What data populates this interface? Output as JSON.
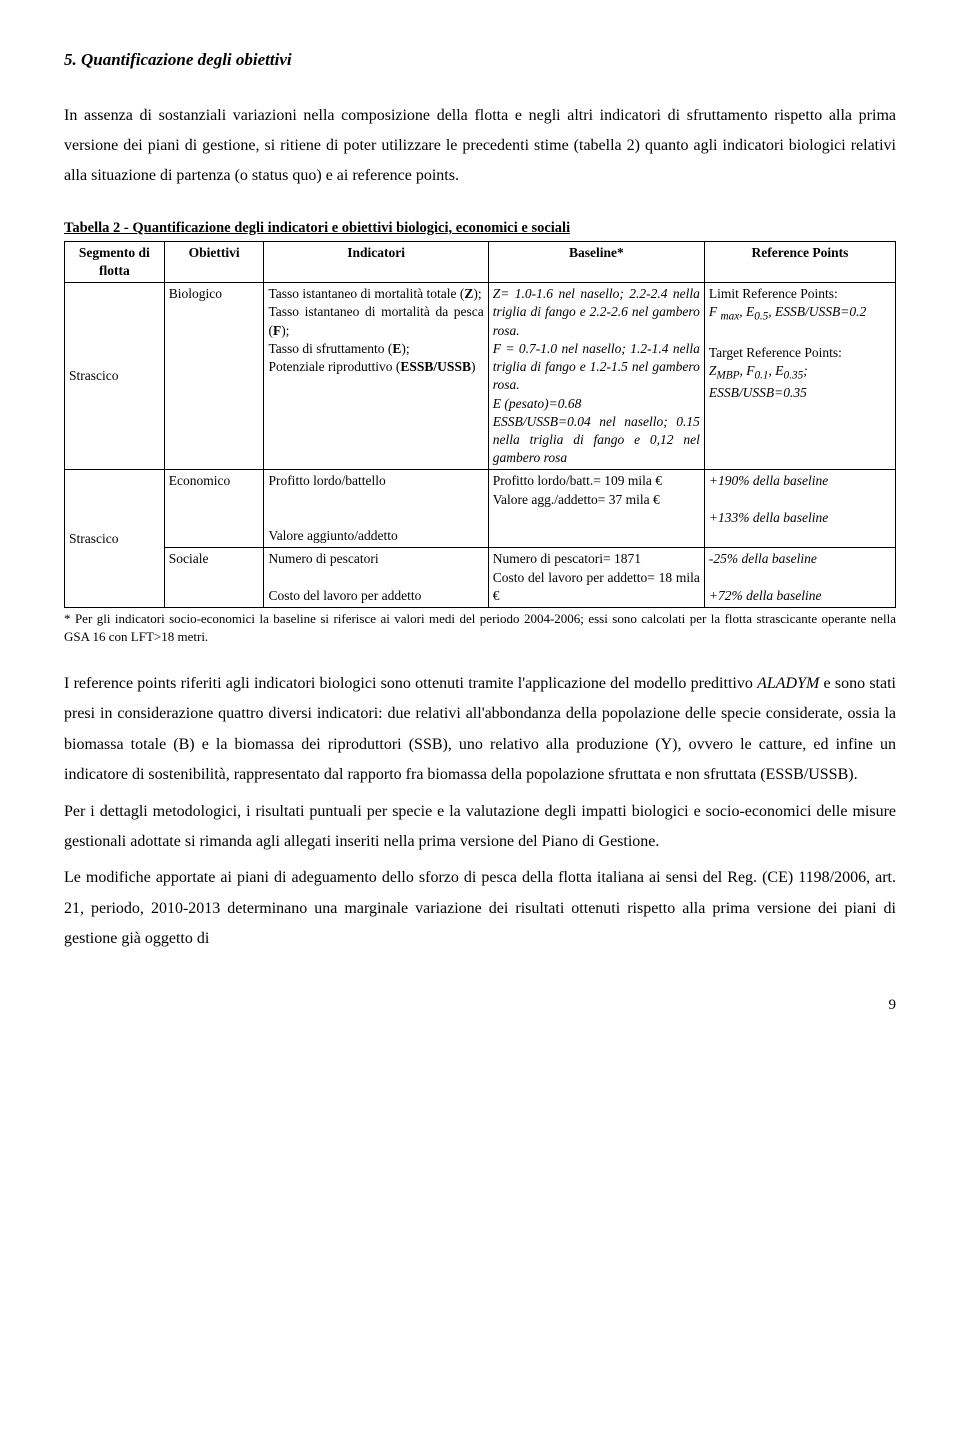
{
  "heading": "5. Quantificazione degli obiettivi",
  "intro": "In assenza di sostanziali variazioni nella composizione della flotta e negli altri indicatori di sfruttamento rispetto alla prima versione dei piani di gestione, si ritiene di poter utilizzare le precedenti stime (tabella 2) quanto agli indicatori biologici relativi alla situazione di partenza (o status quo) e ai reference points.",
  "table_caption": "Tabella 2 - Quantificazione degli indicatori e obiettivi biologici, economici e sociali",
  "table": {
    "headers": [
      "Segmento di flotta",
      "Obiettivi",
      "Indicatori",
      "Baseline*",
      "Reference Points"
    ],
    "rows": [
      {
        "segment": "Strascico",
        "objective": "Biologico",
        "indicators_html": "Tasso istantaneo di mortalità totale (<b>Z</b>);<br>Tasso istantaneo di mortalità da pesca (<b>F</b>);<br>Tasso di sfruttamento (<b>E</b>);<br>Potenziale riproduttivo (<b>ESSB/USSB</b>)",
        "baseline_html": "<span class='it'>Z= 1.0-1.6 nel nasello; 2.2-2.4 nella triglia di fango e 2.2-2.6 nel gambero rosa.<br>F = 0.7-1.0 nel nasello; 1.2-1.4 nella triglia di fango e 1.2-1.5 nel gambero rosa.<br>E (pesato)=0.68<br>ESSB/USSB=0.04 nel nasello; 0.15 nella triglia di fango e 0,12 nel gambero rosa</span>",
        "ref_html": "Limit Reference Points:<br><span class='it'>F <sub>max</sub>, E<sub>0.5</sub>, ESSB/USSB=0.2</span><br><br>Target Reference Points:<br><span class='it'>Z<sub>MBP</sub>, F<sub>0.1</sub>, E<sub>0.35</sub>; ESSB/USSB=0.35</span>"
      },
      {
        "segment": "Strascico",
        "segment_rowspan": 2,
        "objective": "Economico",
        "indicators_html": "Profitto lordo/battello<br><br><br>Valore aggiunto/addetto",
        "baseline_html": "Profitto lordo/batt.= 109 mila €<br>Valore agg./addetto= 37 mila €",
        "ref_html": "<span class='it'>+190% della baseline</span><br><br><span class='it'>+133% della baseline</span>"
      },
      {
        "objective": "Sociale",
        "indicators_html": "Numero di pescatori<br><br>Costo del lavoro per addetto",
        "baseline_html": "Numero di pescatori= 1871<br>Costo del lavoro per addetto= 18 mila €",
        "ref_html": "<span class='it'>-25% della baseline</span><br><br><span class='it'>+72% della baseline</span>"
      }
    ]
  },
  "footnote": "* Per gli indicatori socio-economici la baseline si riferisce ai valori medi del periodo 2004-2006; essi sono calcolati per la flotta strascicante operante nella GSA 16 con LFT>18 metri.",
  "para1": "I reference points riferiti agli indicatori biologici sono ottenuti tramite l'applicazione del modello predittivo <i>ALADYM</i> e sono stati presi in considerazione quattro diversi indicatori: due relativi all'abbondanza della popolazione delle specie considerate, ossia la biomassa totale (B) e la biomassa dei riproduttori (SSB), uno relativo alla produzione (Y), ovvero le catture, ed infine un indicatore di sostenibilità, rappresentato dal rapporto fra biomassa della popolazione sfruttata e non sfruttata (ESSB/USSB).",
  "para2": "Per i dettagli metodologici, i risultati puntuali per specie e la valutazione degli impatti biologici e socio-economici delle misure gestionali adottate si rimanda agli allegati inseriti nella prima versione del Piano di Gestione.",
  "para3": "Le modifiche apportate ai piani di adeguamento dello sforzo di pesca della flotta italiana ai sensi del Reg. (CE) 1198/2006, art. 21, periodo, 2010-2013 determinano una marginale variazione dei risultati ottenuti rispetto alla prima versione dei piani di gestione già oggetto di",
  "page_number": "9"
}
